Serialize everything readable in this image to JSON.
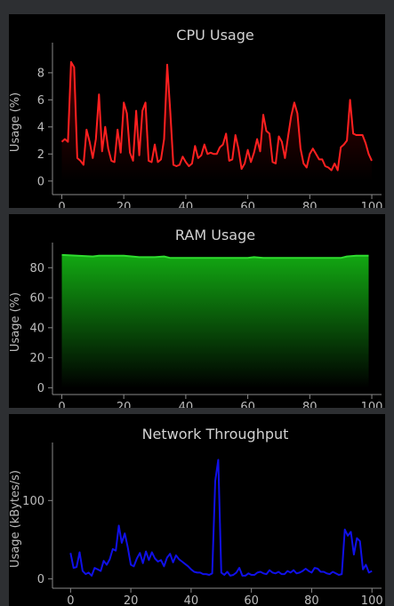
{
  "window": {
    "background": "#2d2f32",
    "panel_background": "#000000"
  },
  "chart_data": [
    {
      "type": "area",
      "title": "CPU Usage",
      "xlabel": "",
      "ylabel": "Usage (%)",
      "xlim": [
        -3,
        102
      ],
      "ylim": [
        -1.0,
        9.7
      ],
      "xticks": [
        0,
        20,
        40,
        60,
        80,
        100
      ],
      "yticks": [
        0,
        2,
        4,
        6,
        8
      ],
      "grid": false,
      "legend": "none",
      "line_color": "#ff2020",
      "fill_top_color": "#5a0000",
      "fill_bottom_color": "#000000",
      "fill_opacity": 0.85,
      "series": [
        {
          "x": [
            0,
            1,
            2,
            3,
            4,
            5,
            6,
            7,
            8,
            9,
            10,
            11,
            12,
            13,
            14,
            15,
            16,
            17,
            18,
            19,
            20,
            21,
            22,
            23,
            24,
            25,
            26,
            27,
            28,
            29,
            30,
            31,
            32,
            33,
            34,
            35,
            36,
            37,
            38,
            39,
            40,
            41,
            42,
            43,
            44,
            45,
            46,
            47,
            48,
            49,
            50,
            51,
            52,
            53,
            54,
            55,
            56,
            57,
            58,
            59,
            60,
            61,
            62,
            63,
            64,
            65,
            66,
            67,
            68,
            69,
            70,
            71,
            72,
            73,
            74,
            75,
            76,
            77,
            78,
            79,
            80,
            81,
            82,
            83,
            84,
            85,
            86,
            87,
            88,
            89,
            90,
            91,
            92,
            93,
            94,
            95,
            96,
            97,
            98,
            99,
            100
          ],
          "values": [
            2.9,
            3.1,
            2.9,
            8.8,
            8.4,
            1.7,
            1.5,
            1.2,
            3.8,
            2.9,
            1.7,
            3.1,
            6.4,
            2.2,
            4.0,
            2.4,
            1.5,
            1.4,
            3.8,
            2.1,
            5.8,
            5.0,
            2.1,
            1.5,
            5.2,
            1.9,
            5.2,
            5.8,
            1.5,
            1.4,
            2.7,
            1.4,
            1.6,
            3.1,
            8.6,
            5.1,
            1.2,
            1.1,
            1.2,
            1.8,
            1.4,
            1.1,
            1.3,
            2.6,
            1.7,
            1.9,
            2.7,
            2.0,
            2.1,
            2.0,
            2.0,
            2.5,
            2.7,
            3.5,
            1.5,
            1.6,
            3.4,
            2.4,
            0.9,
            1.3,
            2.3,
            1.4,
            2.1,
            3.1,
            2.2,
            4.9,
            3.7,
            3.5,
            1.4,
            1.3,
            3.3,
            2.9,
            1.7,
            3.3,
            4.8,
            5.8,
            5.0,
            2.4,
            1.3,
            1.0,
            2.0,
            2.4,
            2.0,
            1.6,
            1.6,
            1.1,
            1.0,
            0.8,
            1.3,
            0.8,
            2.5,
            2.7,
            3.0,
            6.0,
            3.5,
            3.4,
            3.4,
            3.4,
            2.8,
            2.0,
            1.5
          ]
        }
      ]
    },
    {
      "type": "area",
      "title": "RAM Usage",
      "xlabel": "",
      "ylabel": "Usage (%)",
      "xlim": [
        -3,
        102
      ],
      "ylim": [
        -4.5,
        92
      ],
      "xticks": [
        0,
        20,
        40,
        60,
        80,
        100
      ],
      "yticks": [
        0,
        20,
        40,
        60,
        80
      ],
      "grid": false,
      "legend": "none",
      "line_color": "#2fdc2f",
      "fill_top_color": "#12a812",
      "fill_bottom_color": "#000000",
      "fill_opacity": 1,
      "series": [
        {
          "x": [
            0,
            5,
            10,
            12,
            15,
            20,
            25,
            30,
            33,
            35,
            40,
            45,
            50,
            55,
            60,
            62,
            65,
            70,
            75,
            80,
            85,
            90,
            92,
            95,
            99
          ],
          "values": [
            88.5,
            88,
            87.5,
            88,
            88,
            88,
            87,
            87,
            87.5,
            86.5,
            86.5,
            86.5,
            86.5,
            86.5,
            86.5,
            87,
            86.5,
            86.5,
            86.5,
            86.5,
            86.5,
            86.5,
            87.5,
            88,
            88
          ]
        }
      ]
    },
    {
      "type": "line",
      "title": "Network Throughput",
      "xlabel": "",
      "ylabel": "Usage (kBytes/s)",
      "xlim": [
        -6,
        102
      ],
      "ylim": [
        -12,
        165
      ],
      "xticks": [
        0,
        20,
        40,
        60,
        80,
        100
      ],
      "yticks": [
        0,
        100
      ],
      "grid": false,
      "legend": "none",
      "line_color": "#1010e8",
      "series": [
        {
          "x": [
            0,
            1,
            2,
            3,
            4,
            5,
            6,
            7,
            8,
            9,
            10,
            11,
            12,
            13,
            14,
            15,
            16,
            17,
            18,
            19,
            20,
            21,
            22,
            23,
            24,
            25,
            26,
            27,
            28,
            29,
            30,
            31,
            32,
            33,
            34,
            35,
            36,
            37,
            38,
            39,
            40,
            41,
            42,
            43,
            44,
            45,
            46,
            47,
            48,
            49,
            50,
            51,
            52,
            53,
            54,
            55,
            56,
            57,
            58,
            59,
            60,
            61,
            62,
            63,
            64,
            65,
            66,
            67,
            68,
            69,
            70,
            71,
            72,
            73,
            74,
            75,
            76,
            77,
            78,
            79,
            80,
            81,
            82,
            83,
            84,
            85,
            86,
            87,
            88,
            89,
            90,
            91,
            92,
            93,
            94,
            95,
            96,
            97,
            98,
            99,
            100
          ],
          "values": [
            33,
            14,
            15,
            34,
            10,
            6,
            8,
            4,
            14,
            12,
            10,
            23,
            18,
            25,
            38,
            36,
            68,
            46,
            58,
            40,
            18,
            16,
            26,
            33,
            20,
            35,
            24,
            34,
            26,
            22,
            24,
            16,
            27,
            32,
            21,
            30,
            25,
            22,
            19,
            16,
            12,
            9,
            8,
            8,
            6,
            6,
            5,
            7,
            125,
            152,
            8,
            5,
            9,
            4,
            5,
            8,
            14,
            4,
            4,
            7,
            5,
            5,
            8,
            9,
            7,
            6,
            11,
            8,
            7,
            9,
            6,
            6,
            10,
            8,
            11,
            7,
            8,
            10,
            13,
            10,
            8,
            14,
            13,
            9,
            9,
            7,
            6,
            9,
            7,
            5,
            6,
            63,
            55,
            60,
            31,
            52,
            48,
            12,
            18,
            8,
            10
          ]
        }
      ]
    }
  ]
}
